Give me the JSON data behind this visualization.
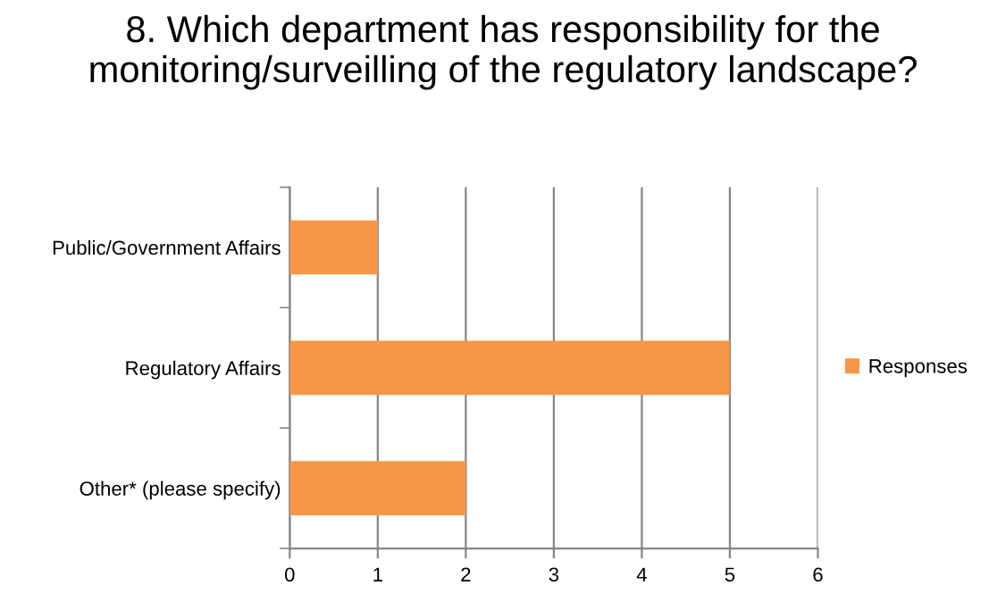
{
  "chart_data": {
    "type": "bar",
    "orientation": "horizontal",
    "title": "8. Which department has responsibility for the monitoring/surveilling of the regulatory landscape?",
    "categories": [
      "Public/Government Affairs",
      "Regulatory Affairs",
      "Other* (please specify)"
    ],
    "series": [
      {
        "name": "Responses",
        "color": "#f79646",
        "values": [
          1,
          5,
          2
        ]
      }
    ],
    "xlim": [
      0,
      6
    ],
    "xticks": [
      0,
      1,
      2,
      3,
      4,
      5,
      6
    ],
    "grid": "x",
    "legend": "right"
  }
}
